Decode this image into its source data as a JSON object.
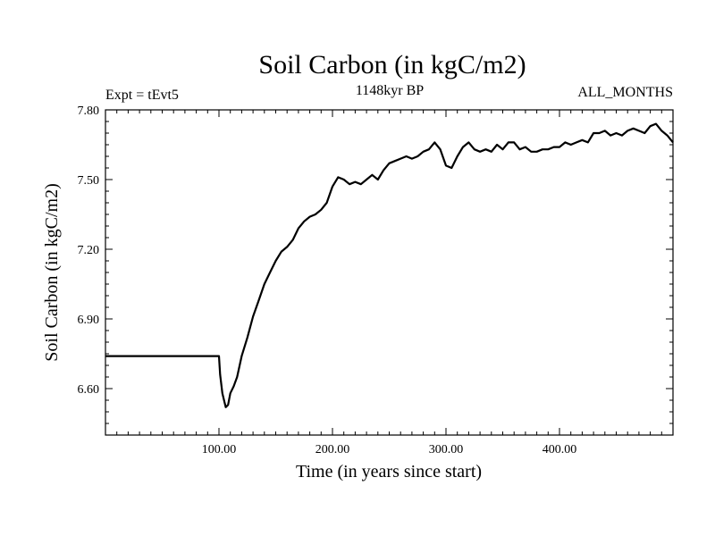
{
  "chart_data": {
    "type": "line",
    "title": "Soil Carbon (in kgC/m2)",
    "subtitle": "1148kyr BP",
    "left_label": "Expt = tEvt5",
    "right_label": "ALL_MONTHS",
    "xlabel": "Time (in years since start)",
    "ylabel": "Soil Carbon (in kgC/m2)",
    "xlim": [
      0,
      500
    ],
    "ylim": [
      6.4,
      7.8
    ],
    "x_ticks": [
      100,
      200,
      300,
      400
    ],
    "x_tick_labels": [
      "100.00",
      "200.00",
      "300.00",
      "400.00"
    ],
    "y_ticks": [
      6.6,
      6.9,
      7.2,
      7.5,
      7.8
    ],
    "y_tick_labels": [
      "6.60",
      "6.90",
      "7.20",
      "7.50",
      "7.80"
    ],
    "series": [
      {
        "name": "Soil Carbon",
        "x": [
          0,
          100,
          101,
          103,
          105,
          106,
          108,
          110,
          113,
          116,
          120,
          125,
          130,
          135,
          140,
          145,
          150,
          155,
          160,
          165,
          170,
          175,
          180,
          185,
          190,
          195,
          200,
          205,
          210,
          215,
          220,
          225,
          230,
          235,
          240,
          245,
          250,
          255,
          260,
          265,
          270,
          275,
          280,
          285,
          290,
          295,
          300,
          305,
          310,
          315,
          320,
          325,
          330,
          335,
          340,
          345,
          350,
          355,
          360,
          365,
          370,
          375,
          380,
          385,
          390,
          395,
          400,
          405,
          410,
          415,
          420,
          425,
          430,
          435,
          440,
          445,
          450,
          455,
          460,
          465,
          470,
          475,
          480,
          485,
          490,
          495,
          500
        ],
        "values": [
          6.74,
          6.74,
          6.66,
          6.58,
          6.54,
          6.52,
          6.53,
          6.58,
          6.61,
          6.65,
          6.74,
          6.82,
          6.91,
          6.98,
          7.05,
          7.1,
          7.15,
          7.19,
          7.21,
          7.24,
          7.29,
          7.32,
          7.34,
          7.35,
          7.37,
          7.4,
          7.47,
          7.51,
          7.5,
          7.48,
          7.49,
          7.48,
          7.5,
          7.52,
          7.5,
          7.54,
          7.57,
          7.58,
          7.59,
          7.6,
          7.59,
          7.6,
          7.62,
          7.63,
          7.66,
          7.63,
          7.56,
          7.55,
          7.6,
          7.64,
          7.66,
          7.63,
          7.62,
          7.63,
          7.62,
          7.65,
          7.63,
          7.66,
          7.66,
          7.63,
          7.64,
          7.62,
          7.62,
          7.63,
          7.63,
          7.64,
          7.64,
          7.66,
          7.65,
          7.66,
          7.67,
          7.66,
          7.7,
          7.7,
          7.71,
          7.69,
          7.7,
          7.69,
          7.71,
          7.72,
          7.71,
          7.7,
          7.73,
          7.74,
          7.71,
          7.69,
          7.66
        ]
      }
    ]
  }
}
